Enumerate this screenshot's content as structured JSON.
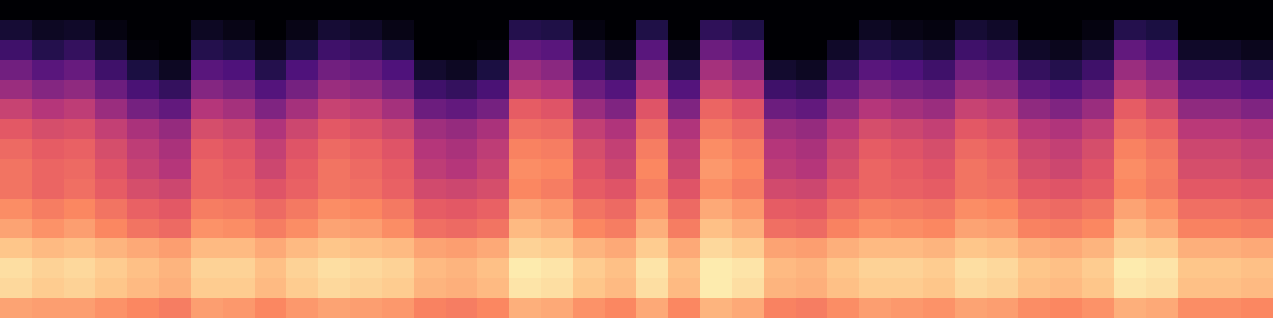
{
  "chart_data": {
    "type": "heatmap",
    "tick_labels": false,
    "zlim": [
      -80,
      0
    ],
    "z": [
      [
        -15,
        -16,
        -16,
        -18,
        -20,
        -22,
        -16,
        -17,
        -20,
        -17,
        -15,
        -16,
        -17,
        -21,
        -22,
        -20,
        -13,
        -14,
        -18,
        -20,
        -14,
        -20,
        -12,
        -14,
        -21,
        -22,
        -19,
        -16,
        -17,
        -18,
        -15,
        -16,
        -19,
        -20,
        -18,
        -13,
        -14,
        -19,
        -19,
        -20
      ],
      [
        -6,
        -8,
        -7,
        -9,
        -11,
        -13,
        -8,
        -8,
        -11,
        -8,
        -6,
        -7,
        -8,
        -12,
        -13,
        -11,
        -4,
        -5,
        -9,
        -11,
        -5,
        -11,
        -3,
        -5,
        -12,
        -13,
        -10,
        -8,
        -8,
        -9,
        -6,
        -7,
        -10,
        -11,
        -9,
        -4,
        -5,
        -10,
        -10,
        -11
      ],
      [
        -5,
        -7,
        -6,
        -8,
        -10,
        -12,
        -7,
        -7,
        -10,
        -7,
        -5,
        -6,
        -7,
        -11,
        -12,
        -10,
        -3,
        -4,
        -8,
        -10,
        -4,
        -10,
        -3,
        -4,
        -11,
        -12,
        -9,
        -7,
        -7,
        -8,
        -5,
        -6,
        -9,
        -10,
        -8,
        -3,
        -4,
        -9,
        -9,
        -10
      ],
      [
        -9,
        -11,
        -10,
        -12,
        -14,
        -16,
        -11,
        -11,
        -14,
        -11,
        -9,
        -10,
        -11,
        -15,
        -16,
        -14,
        -7,
        -8,
        -12,
        -14,
        -8,
        -14,
        -6,
        -8,
        -15,
        -16,
        -13,
        -11,
        -11,
        -12,
        -9,
        -10,
        -13,
        -14,
        -12,
        -7,
        -8,
        -13,
        -13,
        -14
      ],
      [
        -15,
        -18,
        -16,
        -20,
        -24,
        -26,
        -18,
        -19,
        -22,
        -19,
        -15,
        -16,
        -19,
        -25,
        -26,
        -24,
        -11,
        -13,
        -20,
        -22,
        -13,
        -22,
        -10,
        -13,
        -25,
        -26,
        -21,
        -18,
        -19,
        -20,
        -15,
        -16,
        -21,
        -22,
        -20,
        -11,
        -14,
        -21,
        -21,
        -22
      ],
      [
        -19,
        -22,
        -20,
        -24,
        -28,
        -30,
        -22,
        -23,
        -26,
        -23,
        -19,
        -20,
        -23,
        -29,
        -30,
        -28,
        -15,
        -17,
        -24,
        -26,
        -17,
        -26,
        -14,
        -17,
        -29,
        -30,
        -25,
        -22,
        -23,
        -24,
        -19,
        -20,
        -25,
        -26,
        -24,
        -15,
        -18,
        -25,
        -25,
        -26
      ],
      [
        -24,
        -27,
        -25,
        -29,
        -33,
        -35,
        -27,
        -28,
        -31,
        -28,
        -24,
        -25,
        -28,
        -34,
        -35,
        -33,
        -20,
        -22,
        -29,
        -31,
        -22,
        -31,
        -19,
        -22,
        -34,
        -35,
        -30,
        -27,
        -28,
        -29,
        -24,
        -25,
        -30,
        -31,
        -29,
        -20,
        -23,
        -30,
        -30,
        -31
      ],
      [
        -24,
        -27,
        -26,
        -31,
        -36,
        -40,
        -27,
        -29,
        -35,
        -29,
        -24,
        -26,
        -29,
        -38,
        -40,
        -36,
        -19,
        -20,
        -31,
        -35,
        -20,
        -35,
        -17,
        -20,
        -38,
        -40,
        -33,
        -27,
        -29,
        -31,
        -24,
        -26,
        -33,
        -35,
        -31,
        -19,
        -22,
        -33,
        -33,
        -35
      ],
      [
        -26,
        -29,
        -28,
        -33,
        -38,
        -42,
        -29,
        -31,
        -37,
        -31,
        -26,
        -28,
        -31,
        -40,
        -42,
        -38,
        -21,
        -22,
        -33,
        -37,
        -22,
        -37,
        -19,
        -22,
        -40,
        -42,
        -35,
        -29,
        -31,
        -33,
        -26,
        -28,
        -35,
        -37,
        -33,
        -21,
        -24,
        -35,
        -35,
        -37
      ],
      [
        -30,
        -33,
        -32,
        -37,
        -42,
        -46,
        -33,
        -35,
        -41,
        -35,
        -30,
        -32,
        -35,
        -44,
        -46,
        -42,
        -25,
        -26,
        -37,
        -41,
        -26,
        -41,
        -23,
        -26,
        -44,
        -46,
        -39,
        -33,
        -35,
        -37,
        -30,
        -32,
        -39,
        -41,
        -37,
        -25,
        -28,
        -39,
        -39,
        -41
      ],
      [
        -36,
        -40,
        -38,
        -45,
        -52,
        -56,
        -40,
        -43,
        -50,
        -43,
        -36,
        -38,
        -43,
        -54,
        -56,
        -52,
        -29,
        -31,
        -45,
        -50,
        -31,
        -50,
        -27,
        -31,
        -54,
        -56,
        -47,
        -40,
        -43,
        -45,
        -36,
        -38,
        -47,
        -50,
        -45,
        -29,
        -34,
        -47,
        -47,
        -50
      ],
      [
        -45,
        -49,
        -47,
        -54,
        -61,
        -65,
        -49,
        -52,
        -59,
        -52,
        -45,
        -47,
        -52,
        -63,
        -65,
        -61,
        -38,
        -40,
        -54,
        -59,
        -40,
        -59,
        -36,
        -40,
        -63,
        -65,
        -56,
        -49,
        -52,
        -54,
        -45,
        -47,
        -56,
        -59,
        -54,
        -38,
        -43,
        -56,
        -56,
        -59
      ],
      [
        -53,
        -58,
        -55,
        -63,
        -70,
        -75,
        -58,
        -60,
        -68,
        -60,
        -53,
        -55,
        -60,
        -73,
        -75,
        -70,
        -45,
        -48,
        -63,
        -68,
        -48,
        -68,
        -43,
        -48,
        -73,
        -75,
        -65,
        -58,
        -60,
        -63,
        -53,
        -55,
        -65,
        -68,
        -63,
        -45,
        -50,
        -65,
        -65,
        -68
      ],
      [
        -63,
        -68,
        -65,
        -72,
        -79,
        -80,
        -68,
        -70,
        -76,
        -70,
        -63,
        -65,
        -70,
        -80,
        -80,
        -79,
        -56,
        -58,
        -72,
        -76,
        -58,
        -76,
        -54,
        -58,
        -80,
        -80,
        -74,
        -68,
        -70,
        -72,
        -63,
        -65,
        -74,
        -76,
        -72,
        -56,
        -61,
        -74,
        -74,
        -76
      ],
      [
        -72,
        -75,
        -74,
        -78,
        -80,
        -80,
        -75,
        -77,
        -80,
        -77,
        -72,
        -74,
        -77,
        -80,
        -80,
        -80,
        -68,
        -69,
        -78,
        -80,
        -69,
        -80,
        -66,
        -69,
        -80,
        -80,
        -80,
        -75,
        -77,
        -78,
        -72,
        -74,
        -80,
        -80,
        -78,
        -68,
        -70,
        -80,
        -80,
        -80
      ],
      [
        -80,
        -80,
        -80,
        -80,
        -80,
        -80,
        -80,
        -80,
        -80,
        -80,
        -80,
        -80,
        -80,
        -80,
        -80,
        -80,
        -80,
        -80,
        -80,
        -80,
        -80,
        -80,
        -80,
        -80,
        -80,
        -80,
        -80,
        -80,
        -80,
        -80,
        -80,
        -80,
        -80,
        -80,
        -80,
        -80,
        -80,
        -80,
        -80,
        -80
      ]
    ]
  }
}
